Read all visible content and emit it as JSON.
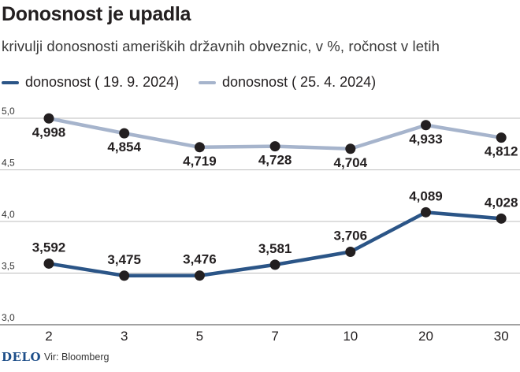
{
  "header": {
    "title": "Donosnost je upadla",
    "subtitle": "krivulji donosnosti ameriških državnih obveznic, v %, ročnost v letih"
  },
  "footer": {
    "logo": "DELO",
    "source": "Vir: Bloomberg"
  },
  "colors": {
    "series1": "#2b5587",
    "series2": "#a6b4cc",
    "marker": "#231f20",
    "grid": "#bdbdbd"
  },
  "chart_data": {
    "type": "line",
    "x": [
      "2",
      "3",
      "5",
      "7",
      "10",
      "20",
      "30"
    ],
    "ylim": [
      3.0,
      5.0
    ],
    "yticks": [
      "3,0",
      "3,5",
      "4,0",
      "4,5",
      "5,0"
    ],
    "grid": true,
    "legend_position": "top-left",
    "series": [
      {
        "name": "donosnost ( 19. 9. 2024)",
        "values": [
          3.592,
          3.475,
          3.476,
          3.581,
          3.706,
          4.089,
          4.028
        ],
        "labels": [
          "3,592",
          "3,475",
          "3,476",
          "3,581",
          "3,706",
          "4,089",
          "4,028"
        ]
      },
      {
        "name": "donosnost ( 25. 4. 2024)",
        "values": [
          4.998,
          4.854,
          4.719,
          4.728,
          4.704,
          4.933,
          4.812
        ],
        "labels": [
          "4,998",
          "4,854",
          "4,719",
          "4,728",
          "4,704",
          "4,933",
          "4,812"
        ]
      }
    ]
  }
}
